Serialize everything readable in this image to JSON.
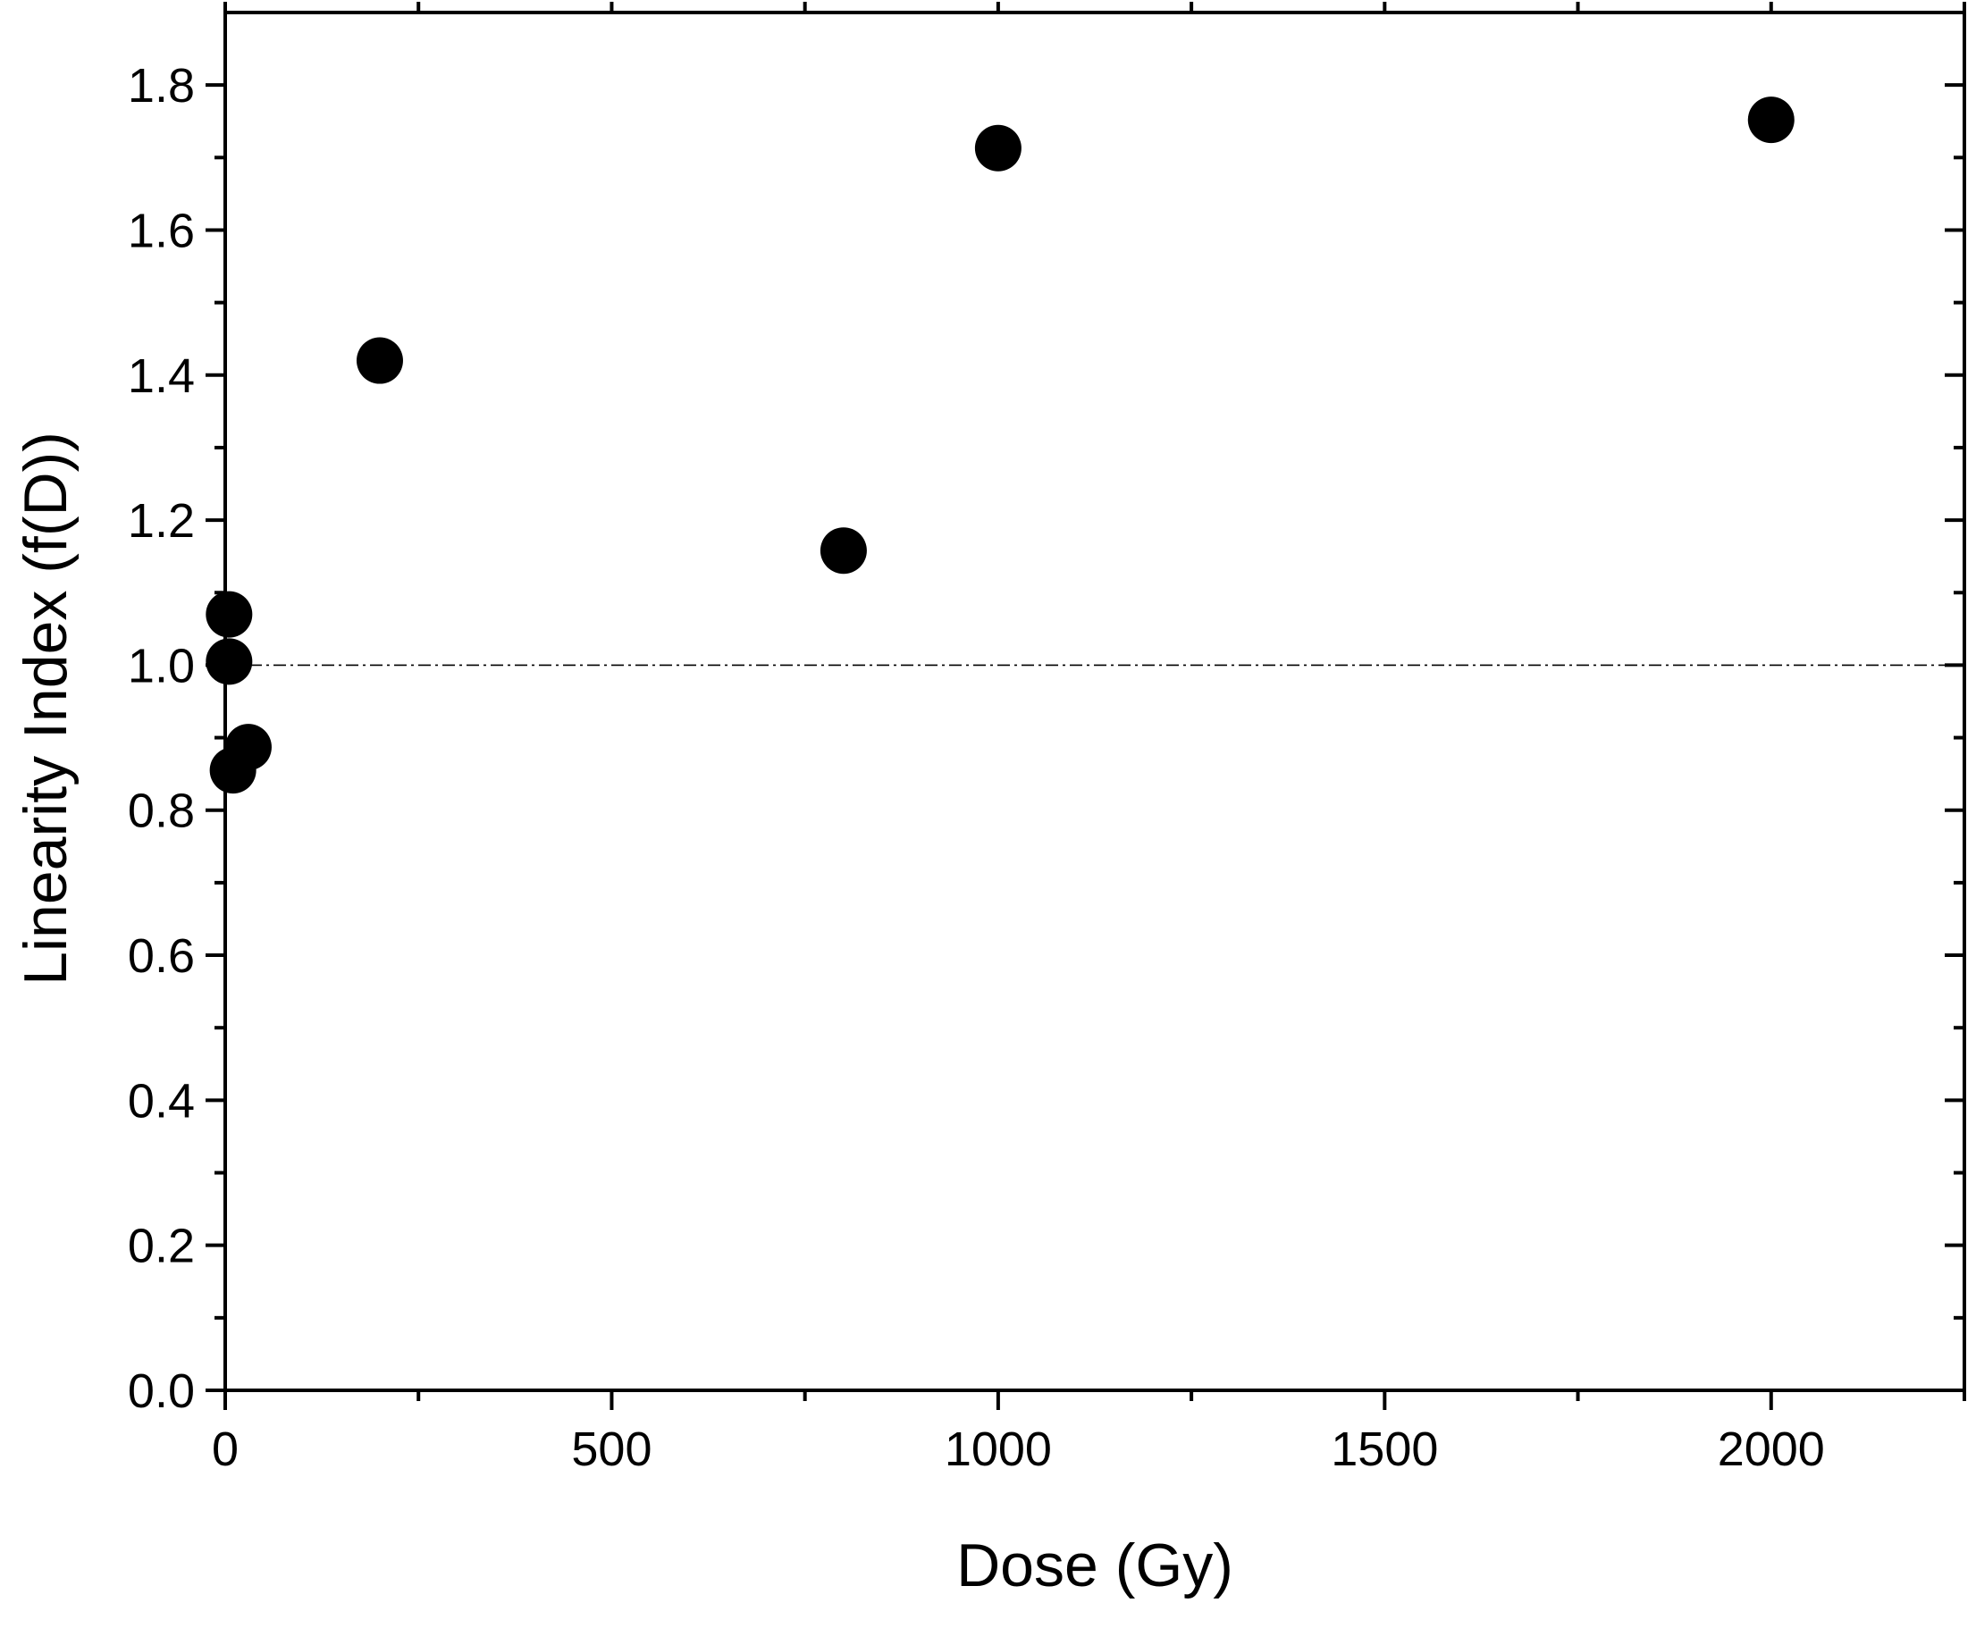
{
  "chart_data": {
    "type": "scatter",
    "title": "",
    "xlabel": "Dose (Gy)",
    "ylabel": "Linearity Index (f(D))",
    "xlim": [
      0,
      2250
    ],
    "ylim": [
      0,
      1.9
    ],
    "x_ticks": [
      "0",
      "500",
      "1000",
      "1500",
      "2000"
    ],
    "y_ticks": [
      "0.0",
      "0.2",
      "0.4",
      "0.6",
      "0.8",
      "1.0",
      "1.2",
      "1.4",
      "1.6",
      "1.8"
    ],
    "grid": false,
    "legend": "none",
    "reference_line": {
      "y": 1.0,
      "style": "dash-dot"
    },
    "series": [
      {
        "marker_color": "#000000",
        "points": [
          {
            "x": 5,
            "y": 1.07
          },
          {
            "x": 5,
            "y": 1.005
          },
          {
            "x": 10,
            "y": 0.855
          },
          {
            "x": 30,
            "y": 0.887
          },
          {
            "x": 200,
            "y": 1.42
          },
          {
            "x": 800,
            "y": 1.158
          },
          {
            "x": 1000,
            "y": 1.713
          },
          {
            "x": 2000,
            "y": 1.752
          }
        ]
      }
    ]
  }
}
